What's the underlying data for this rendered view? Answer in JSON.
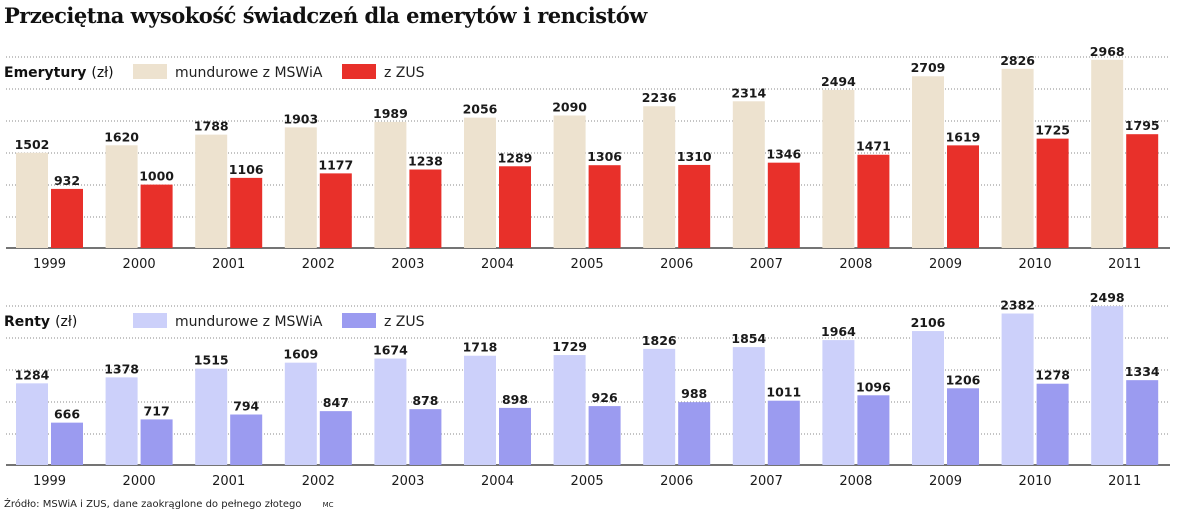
{
  "title": "Przeciętna wysokość świadczeń dla emerytów i rencistów",
  "source": "Źródło: MSWiA i ZUS, dane zaokrąglone do pełnego złotego",
  "credit": "MC",
  "colors": {
    "emerytury_mundurowe": "#ede2cf",
    "emerytury_zus": "#e8302a",
    "renty_mundurowe": "#ccd0fa",
    "renty_zus": "#9b9bf0",
    "grid": "#8a8a8a"
  },
  "chart_data": [
    {
      "type": "bar",
      "panel_title": "Emerytury",
      "unit": "(zł)",
      "categories": [
        "1999",
        "2000",
        "2001",
        "2002",
        "2003",
        "2004",
        "2005",
        "2006",
        "2007",
        "2008",
        "2009",
        "2010",
        "2011"
      ],
      "series": [
        {
          "name": "mundurowe z MSWiA",
          "values": [
            1502,
            1620,
            1788,
            1903,
            1989,
            2056,
            2090,
            2236,
            2314,
            2494,
            2709,
            2826,
            2968
          ]
        },
        {
          "name": "z ZUS",
          "values": [
            932,
            1000,
            1106,
            1177,
            1238,
            1289,
            1306,
            1310,
            1346,
            1471,
            1619,
            1725,
            1795
          ]
        }
      ],
      "ylim": [
        0,
        3000
      ],
      "grid": true,
      "legend": "top-left"
    },
    {
      "type": "bar",
      "panel_title": "Renty",
      "unit": "(zł)",
      "categories": [
        "1999",
        "2000",
        "2001",
        "2002",
        "2003",
        "2004",
        "2005",
        "2006",
        "2007",
        "2008",
        "2009",
        "2010",
        "2011"
      ],
      "series": [
        {
          "name": "mundurowe z MSWiA",
          "values": [
            1284,
            1378,
            1515,
            1609,
            1674,
            1718,
            1729,
            1826,
            1854,
            1964,
            2106,
            2382,
            2498
          ]
        },
        {
          "name": "z ZUS",
          "values": [
            666,
            717,
            794,
            847,
            878,
            898,
            926,
            988,
            1011,
            1096,
            1206,
            1278,
            1334
          ]
        }
      ],
      "ylim": [
        0,
        2500
      ],
      "grid": true,
      "legend": "top-left"
    }
  ]
}
